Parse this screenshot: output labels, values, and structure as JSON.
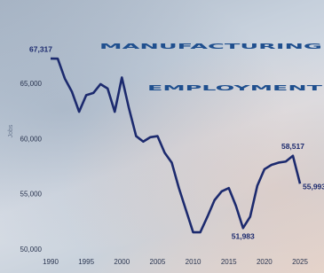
{
  "chart_data": {
    "type": "line",
    "title": "MANUFACTURING",
    "subtitle": "EMPLOYMENT",
    "y_label": "Jobs",
    "x": [
      1990,
      1991,
      1992,
      1993,
      1994,
      1995,
      1996,
      1997,
      1998,
      1999,
      2000,
      2001,
      2002,
      2003,
      2004,
      2005,
      2006,
      2007,
      2008,
      2009,
      2010,
      2011,
      2012,
      2013,
      2014,
      2015,
      2016,
      2017,
      2018,
      2019,
      2020,
      2021,
      2022,
      2023,
      2024,
      2025
    ],
    "values": [
      67317,
      67300,
      65500,
      64300,
      62500,
      64000,
      64200,
      65000,
      64600,
      62500,
      65600,
      62800,
      60300,
      59800,
      60200,
      60300,
      58800,
      57900,
      55600,
      53600,
      51600,
      51600,
      53000,
      54500,
      55300,
      55600,
      54000,
      51983,
      53000,
      55800,
      57300,
      57700,
      57900,
      58000,
      58517,
      55993
    ],
    "value_labels": [
      "67,317",
      null,
      null,
      null,
      null,
      null,
      null,
      null,
      null,
      null,
      null,
      null,
      null,
      null,
      null,
      null,
      null,
      null,
      null,
      null,
      null,
      null,
      null,
      null,
      null,
      null,
      null,
      "51,983",
      null,
      null,
      null,
      null,
      null,
      null,
      "58,517",
      "55,993"
    ],
    "color": "#1c2a6e",
    "xlim": [
      1990,
      2025
    ],
    "xticks": [
      1990,
      1995,
      2000,
      2005,
      2010,
      2015,
      2020,
      2025
    ],
    "ylim": [
      50000,
      68000
    ],
    "yticks": [
      {
        "value": 50000,
        "label": "50,000"
      },
      {
        "value": 55000,
        "label": "55,000"
      },
      {
        "value": 60000,
        "label": "60,000"
      },
      {
        "value": 65000,
        "label": "65,000"
      }
    ],
    "grid": false
  }
}
